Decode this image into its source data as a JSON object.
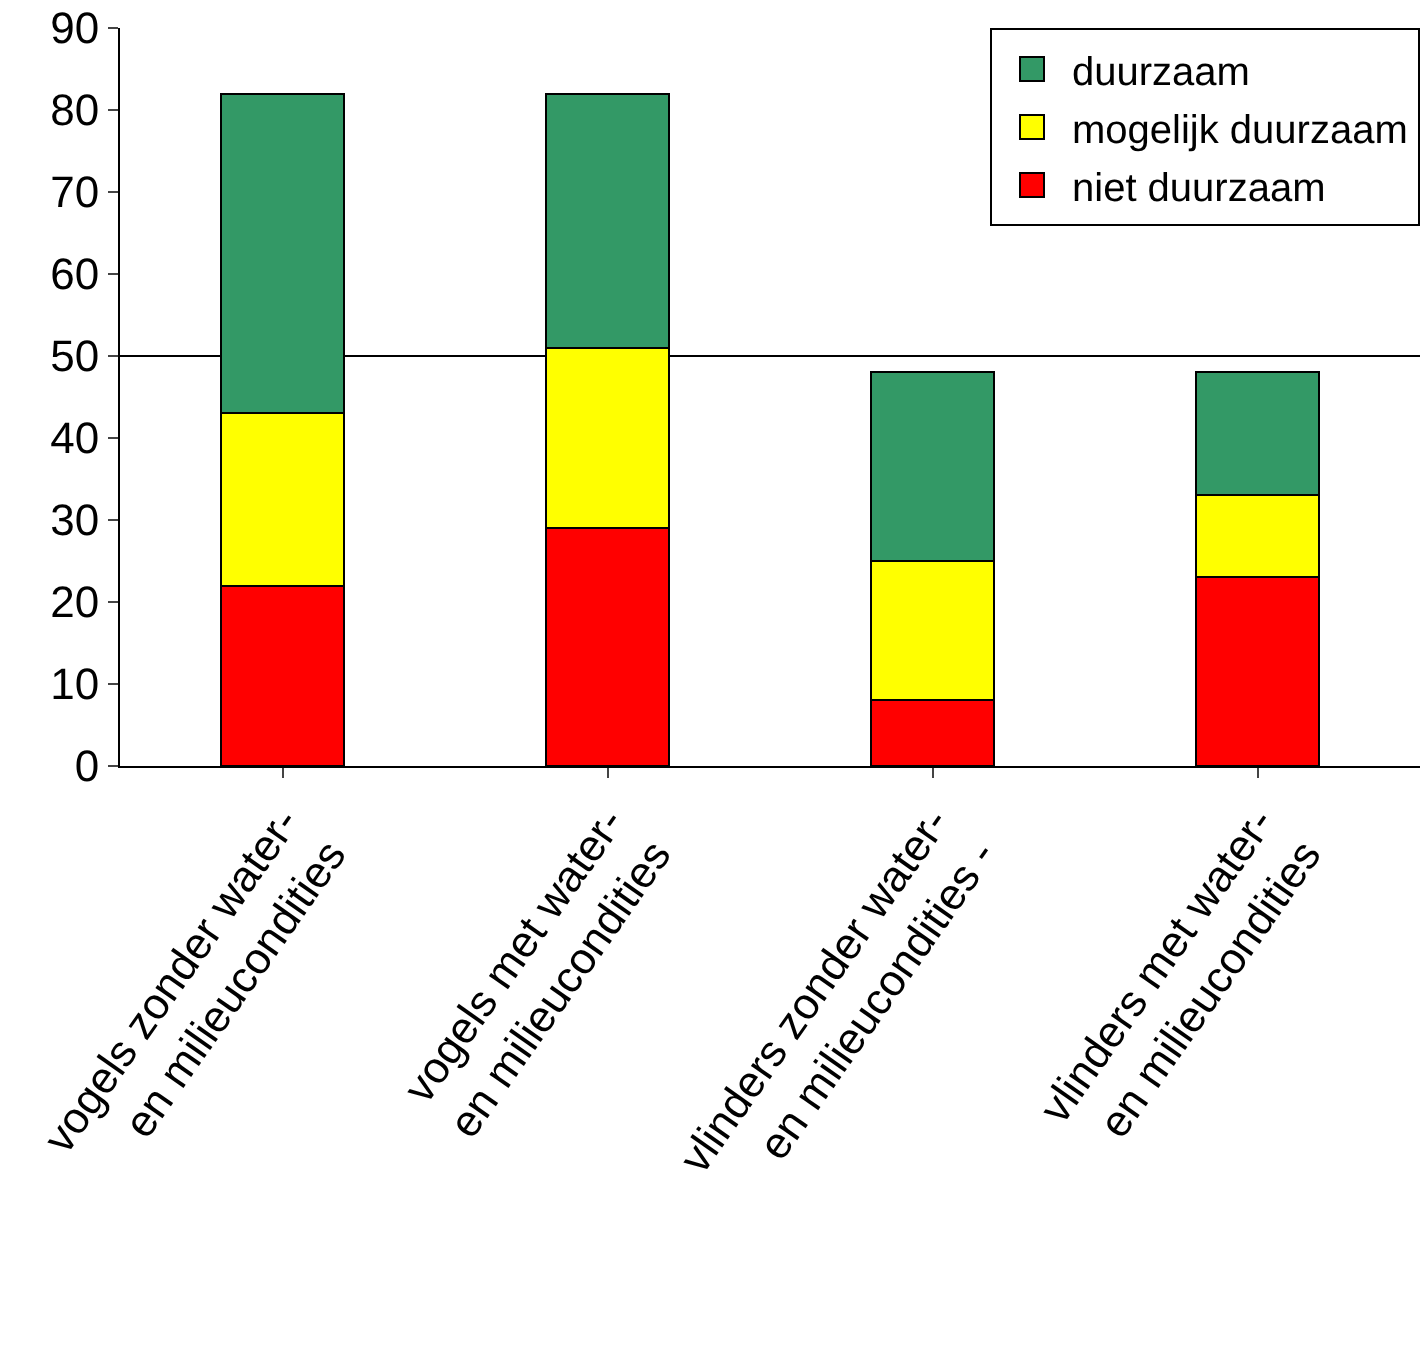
{
  "chart_data": {
    "type": "bar",
    "stacked": true,
    "categories": [
      "vogels zonder water-\nen milieucondities",
      "vogels met water-\nen milieucondities",
      "vlinders zonder water-\nen milieucondities -",
      "vlinders met water-\nen milieucondities"
    ],
    "series": [
      {
        "name": "niet duurzaam",
        "color": "#ff0000",
        "values": [
          22,
          29,
          8,
          23
        ]
      },
      {
        "name": "mogelijk duurzaam",
        "color": "#ffff00",
        "values": [
          21,
          22,
          17,
          10
        ]
      },
      {
        "name": "duurzaam",
        "color": "#339966",
        "values": [
          39,
          31,
          23,
          15
        ]
      }
    ],
    "ylim": [
      0,
      90
    ],
    "yticks": [
      0,
      10,
      20,
      30,
      40,
      50,
      60,
      70,
      80,
      90
    ],
    "ref_lines": [
      {
        "axis": "y",
        "value": 50,
        "color": "#000000"
      }
    ],
    "grid": false,
    "legend": "top right"
  }
}
